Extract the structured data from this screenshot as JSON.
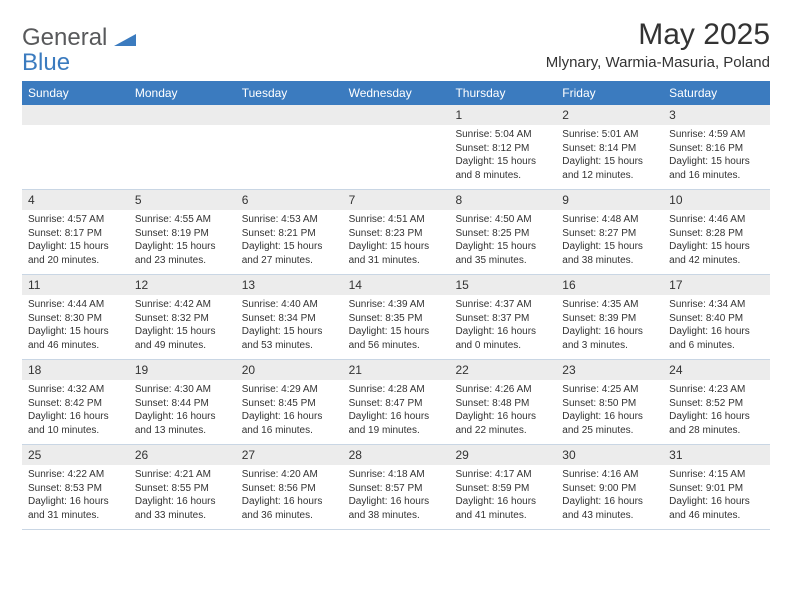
{
  "logo": {
    "word1": "General",
    "word2": "Blue"
  },
  "title": "May 2025",
  "location": "Mlynary, Warmia-Masuria, Poland",
  "header_bg": "#3b7bbf",
  "weekdays": [
    "Sunday",
    "Monday",
    "Tuesday",
    "Wednesday",
    "Thursday",
    "Friday",
    "Saturday"
  ],
  "weeks": [
    [
      null,
      null,
      null,
      null,
      {
        "n": "1",
        "sr": "5:04 AM",
        "ss": "8:12 PM",
        "dl": "15 hours and 8 minutes."
      },
      {
        "n": "2",
        "sr": "5:01 AM",
        "ss": "8:14 PM",
        "dl": "15 hours and 12 minutes."
      },
      {
        "n": "3",
        "sr": "4:59 AM",
        "ss": "8:16 PM",
        "dl": "15 hours and 16 minutes."
      }
    ],
    [
      {
        "n": "4",
        "sr": "4:57 AM",
        "ss": "8:17 PM",
        "dl": "15 hours and 20 minutes."
      },
      {
        "n": "5",
        "sr": "4:55 AM",
        "ss": "8:19 PM",
        "dl": "15 hours and 23 minutes."
      },
      {
        "n": "6",
        "sr": "4:53 AM",
        "ss": "8:21 PM",
        "dl": "15 hours and 27 minutes."
      },
      {
        "n": "7",
        "sr": "4:51 AM",
        "ss": "8:23 PM",
        "dl": "15 hours and 31 minutes."
      },
      {
        "n": "8",
        "sr": "4:50 AM",
        "ss": "8:25 PM",
        "dl": "15 hours and 35 minutes."
      },
      {
        "n": "9",
        "sr": "4:48 AM",
        "ss": "8:27 PM",
        "dl": "15 hours and 38 minutes."
      },
      {
        "n": "10",
        "sr": "4:46 AM",
        "ss": "8:28 PM",
        "dl": "15 hours and 42 minutes."
      }
    ],
    [
      {
        "n": "11",
        "sr": "4:44 AM",
        "ss": "8:30 PM",
        "dl": "15 hours and 46 minutes."
      },
      {
        "n": "12",
        "sr": "4:42 AM",
        "ss": "8:32 PM",
        "dl": "15 hours and 49 minutes."
      },
      {
        "n": "13",
        "sr": "4:40 AM",
        "ss": "8:34 PM",
        "dl": "15 hours and 53 minutes."
      },
      {
        "n": "14",
        "sr": "4:39 AM",
        "ss": "8:35 PM",
        "dl": "15 hours and 56 minutes."
      },
      {
        "n": "15",
        "sr": "4:37 AM",
        "ss": "8:37 PM",
        "dl": "16 hours and 0 minutes."
      },
      {
        "n": "16",
        "sr": "4:35 AM",
        "ss": "8:39 PM",
        "dl": "16 hours and 3 minutes."
      },
      {
        "n": "17",
        "sr": "4:34 AM",
        "ss": "8:40 PM",
        "dl": "16 hours and 6 minutes."
      }
    ],
    [
      {
        "n": "18",
        "sr": "4:32 AM",
        "ss": "8:42 PM",
        "dl": "16 hours and 10 minutes."
      },
      {
        "n": "19",
        "sr": "4:30 AM",
        "ss": "8:44 PM",
        "dl": "16 hours and 13 minutes."
      },
      {
        "n": "20",
        "sr": "4:29 AM",
        "ss": "8:45 PM",
        "dl": "16 hours and 16 minutes."
      },
      {
        "n": "21",
        "sr": "4:28 AM",
        "ss": "8:47 PM",
        "dl": "16 hours and 19 minutes."
      },
      {
        "n": "22",
        "sr": "4:26 AM",
        "ss": "8:48 PM",
        "dl": "16 hours and 22 minutes."
      },
      {
        "n": "23",
        "sr": "4:25 AM",
        "ss": "8:50 PM",
        "dl": "16 hours and 25 minutes."
      },
      {
        "n": "24",
        "sr": "4:23 AM",
        "ss": "8:52 PM",
        "dl": "16 hours and 28 minutes."
      }
    ],
    [
      {
        "n": "25",
        "sr": "4:22 AM",
        "ss": "8:53 PM",
        "dl": "16 hours and 31 minutes."
      },
      {
        "n": "26",
        "sr": "4:21 AM",
        "ss": "8:55 PM",
        "dl": "16 hours and 33 minutes."
      },
      {
        "n": "27",
        "sr": "4:20 AM",
        "ss": "8:56 PM",
        "dl": "16 hours and 36 minutes."
      },
      {
        "n": "28",
        "sr": "4:18 AM",
        "ss": "8:57 PM",
        "dl": "16 hours and 38 minutes."
      },
      {
        "n": "29",
        "sr": "4:17 AM",
        "ss": "8:59 PM",
        "dl": "16 hours and 41 minutes."
      },
      {
        "n": "30",
        "sr": "4:16 AM",
        "ss": "9:00 PM",
        "dl": "16 hours and 43 minutes."
      },
      {
        "n": "31",
        "sr": "4:15 AM",
        "ss": "9:01 PM",
        "dl": "16 hours and 46 minutes."
      }
    ]
  ],
  "labels": {
    "sunrise": "Sunrise:",
    "sunset": "Sunset:",
    "daylight": "Daylight:"
  }
}
